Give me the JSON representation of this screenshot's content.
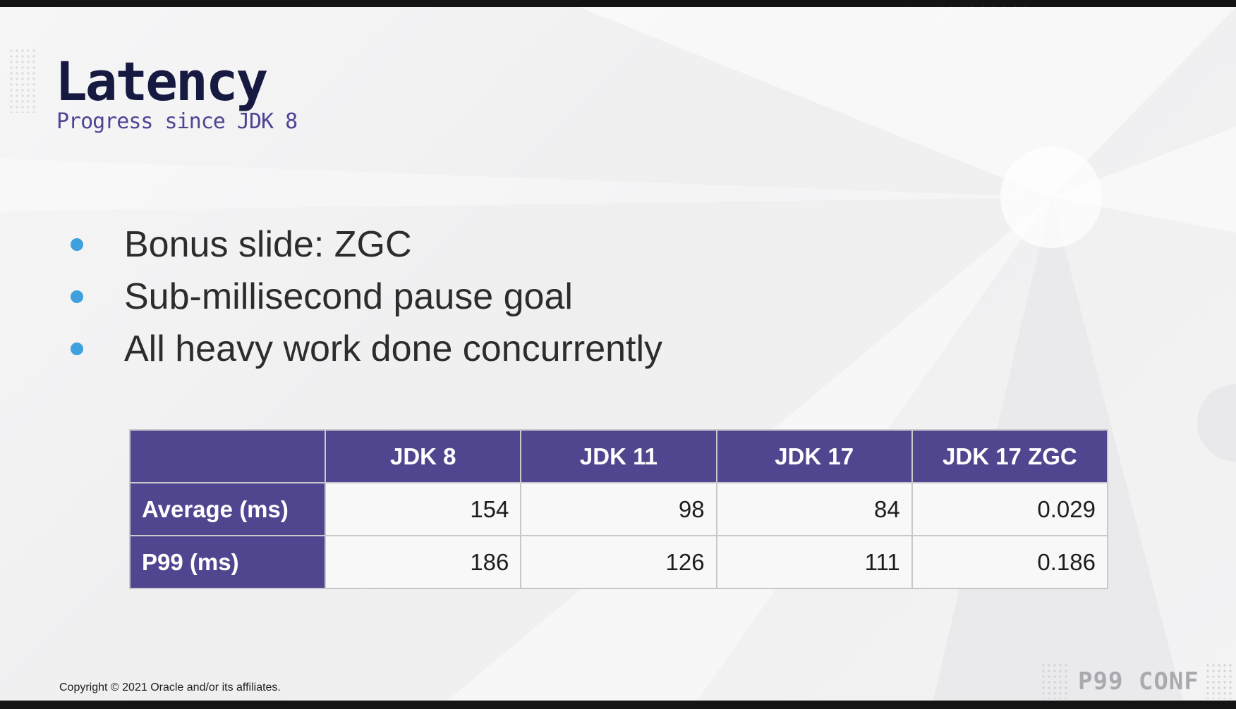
{
  "slide": {
    "title": "Latency",
    "subtitle": "Progress since JDK 8"
  },
  "bullets": [
    "Bonus slide: ZGC",
    "Sub-millisecond pause goal",
    "All heavy work done concurrently"
  ],
  "table": {
    "columns": [
      "",
      "JDK 8",
      "JDK 11",
      "JDK 17",
      "JDK 17 ZGC"
    ],
    "rows": [
      {
        "label": "Average (ms)",
        "values": [
          "154",
          "98",
          "84",
          "0.029"
        ]
      },
      {
        "label": "P99 (ms)",
        "values": [
          "186",
          "126",
          "111",
          "0.186"
        ]
      }
    ]
  },
  "footer": {
    "copyright": "Copyright © 2021 Oracle and/or its affiliates."
  },
  "brand": {
    "name": "P99 CONF"
  },
  "colors": {
    "title": "#161a41",
    "subtitle": "#4d4592",
    "bullet": "#3ea0dc",
    "table_header": "#4f468f"
  }
}
